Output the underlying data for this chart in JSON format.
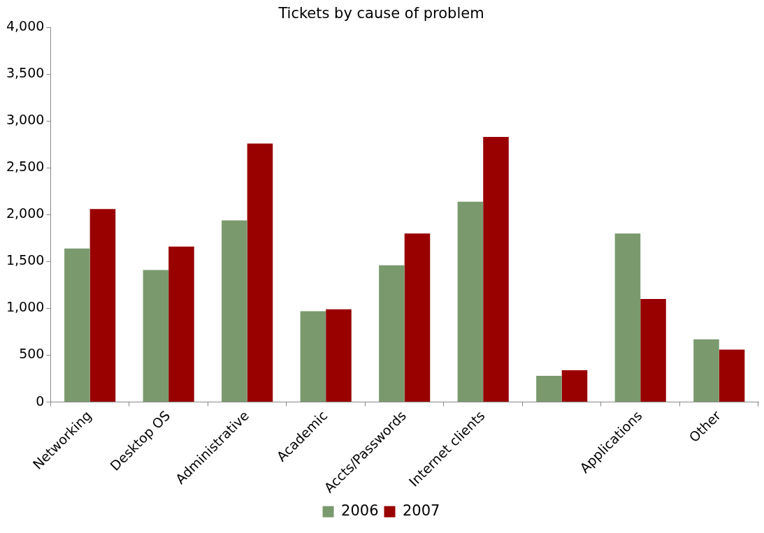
{
  "chart_data": {
    "type": "bar",
    "title": "Tickets by cause of problem",
    "categories": [
      "Networking",
      "Desktop OS",
      "Administrative",
      "Academic",
      "Accts/Passwords",
      "Internet clients",
      null,
      "Applications",
      "Other"
    ],
    "series": [
      {
        "name": "2006",
        "color": "#7a9a6e",
        "values": [
          1640,
          1410,
          1940,
          970,
          1460,
          2140,
          280,
          1800,
          670
        ]
      },
      {
        "name": "2007",
        "color": "#990000",
        "values": [
          2060,
          1660,
          2760,
          990,
          1800,
          2830,
          340,
          1100,
          560
        ]
      }
    ],
    "ylim": [
      0,
      4000
    ],
    "yticks": [
      {
        "value": 0,
        "label": "0"
      },
      {
        "value": 500,
        "label": "500"
      },
      {
        "value": 1000,
        "label": "1,000"
      },
      {
        "value": 1500,
        "label": "1,500"
      },
      {
        "value": 2000,
        "label": "2,000"
      },
      {
        "value": 2500,
        "label": "2,500"
      },
      {
        "value": 3000,
        "label": "3,000"
      },
      {
        "value": 3500,
        "label": "3,500"
      },
      {
        "value": 4000,
        "label": "4,000"
      }
    ],
    "grid": false,
    "legend": "bottom"
  }
}
